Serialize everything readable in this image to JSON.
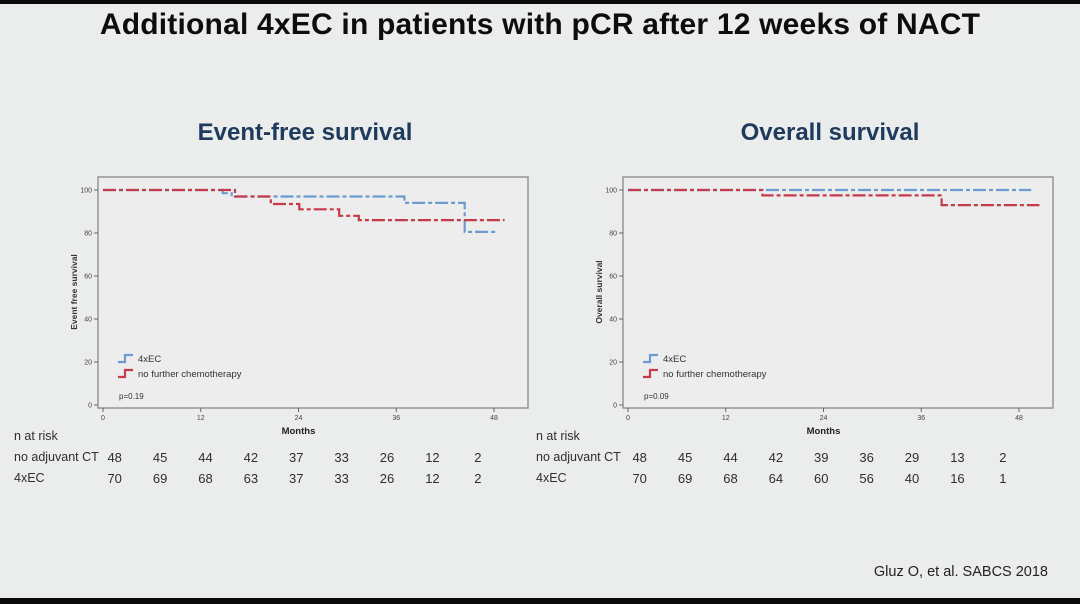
{
  "slide": {
    "title": "Additional 4xEC in patients with pCR after 12 weeks of NACT",
    "citation": "Gluz O, et al. SABCS 2018",
    "colors": {
      "background": "#ebecec",
      "plot_bg": "#ecedec",
      "frame": "#8f8f8f",
      "title": "#0d0d0d",
      "subtitle": "#1e3a5c",
      "blue": "#6c9bd2",
      "red": "#c63a4a",
      "tick_text": "#444444",
      "table_text": "#2e2e2e"
    }
  },
  "chart_data": [
    {
      "type": "line",
      "subtype": "kaplan-meier-step",
      "title": "Event-free survival",
      "xlabel": "Months",
      "ylabel": "Event free survival",
      "xlim": [
        0,
        52
      ],
      "ylim": [
        0,
        100
      ],
      "xticks": [
        0,
        12,
        24,
        36,
        48
      ],
      "yticks": [
        0,
        20,
        40,
        60,
        80,
        100
      ],
      "pvalue": "p=0.19",
      "legend_position": "bottom-left-inside",
      "grid": false,
      "legend": [
        {
          "name": "4xEC",
          "color": "blue"
        },
        {
          "name": "no further chemotherapy",
          "color": "red"
        }
      ],
      "series": [
        {
          "name": "4xEC",
          "color": "blue",
          "step_points": [
            [
              0,
              100
            ],
            [
              14.7,
              100
            ],
            [
              14.7,
              98.5
            ],
            [
              15.8,
              98.5
            ],
            [
              15.8,
              97
            ],
            [
              37,
              97
            ],
            [
              37,
              94
            ],
            [
              44.4,
              94
            ],
            [
              44.4,
              80.5
            ],
            [
              48.5,
              80.5
            ]
          ]
        },
        {
          "name": "no further chemotherapy",
          "color": "red",
          "step_points": [
            [
              0,
              100
            ],
            [
              16.2,
              100
            ],
            [
              16.2,
              97
            ],
            [
              20.6,
              97
            ],
            [
              20.6,
              93.5
            ],
            [
              24.1,
              93.5
            ],
            [
              24.1,
              91
            ],
            [
              29,
              91
            ],
            [
              29,
              88
            ],
            [
              31.4,
              88
            ],
            [
              31.4,
              86
            ],
            [
              49.3,
              86
            ]
          ]
        }
      ],
      "risk_table": {
        "header": "n at risk",
        "time_points": [
          0,
          6,
          12,
          18,
          24,
          30,
          36,
          42,
          48
        ],
        "rows": [
          {
            "label": "no adjuvant CT",
            "values": [
              48,
              45,
              44,
              42,
              37,
              33,
              26,
              12,
              2
            ]
          },
          {
            "label": "4xEC",
            "values": [
              70,
              69,
              68,
              63,
              37,
              33,
              26,
              12,
              2
            ]
          }
        ]
      }
    },
    {
      "type": "line",
      "subtype": "kaplan-meier-step",
      "title": "Overall survival",
      "xlabel": "Months",
      "ylabel": "Overall survival",
      "xlim": [
        0,
        52
      ],
      "ylim": [
        0,
        100
      ],
      "xticks": [
        0,
        12,
        24,
        36,
        48
      ],
      "yticks": [
        0,
        20,
        40,
        60,
        80,
        100
      ],
      "pvalue": "p=0.09",
      "legend_position": "bottom-left-inside",
      "grid": false,
      "legend": [
        {
          "name": "4xEC",
          "color": "blue"
        },
        {
          "name": "no further chemotherapy",
          "color": "red"
        }
      ],
      "series": [
        {
          "name": "4xEC",
          "color": "blue",
          "step_points": [
            [
              0,
              100
            ],
            [
              49.5,
              100
            ]
          ]
        },
        {
          "name": "no further chemotherapy",
          "color": "red",
          "step_points": [
            [
              0,
              100
            ],
            [
              16.5,
              100
            ],
            [
              16.5,
              97.5
            ],
            [
              38.5,
              97.5
            ],
            [
              38.5,
              93
            ],
            [
              50.5,
              93
            ]
          ]
        }
      ],
      "risk_table": {
        "header": "n at risk",
        "time_points": [
          0,
          6,
          12,
          18,
          24,
          30,
          36,
          42,
          48
        ],
        "rows": [
          {
            "label": "no adjuvant CT",
            "values": [
              48,
              45,
              44,
              42,
              39,
              36,
              29,
              13,
              2
            ]
          },
          {
            "label": "4xEC",
            "values": [
              70,
              69,
              68,
              64,
              60,
              56,
              40,
              16,
              1
            ]
          }
        ]
      }
    }
  ]
}
